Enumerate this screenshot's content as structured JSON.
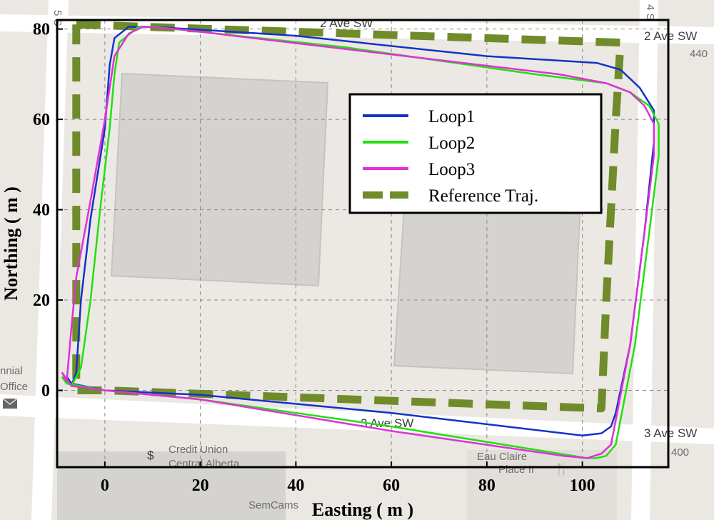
{
  "map_labels": {
    "street_top": "2 Ave SW",
    "street_top_right": "2 Ave SW",
    "street_bottom": "3 Ave SW",
    "street_bottom_right": "3 Ave SW",
    "number_440": "440",
    "number_400": "400",
    "left_fragment_1": "nnial",
    "left_fragment_2": "Office",
    "credit_union_1": "Credit Union",
    "credit_union_2": "Central Alberta",
    "eau_claire_1": "Eau Claire",
    "eau_claire_2": "Place II",
    "semcams": "SemCams",
    "left_street_edge": "5 S",
    "right_street_edge": "4 S"
  },
  "chart_data": {
    "type": "line",
    "title": "",
    "xlabel": "Easting ( m )",
    "ylabel": "Northing ( m )",
    "xlim": [
      -10,
      118
    ],
    "ylim": [
      -17,
      82
    ],
    "xticks": [
      0,
      20,
      40,
      60,
      80,
      100
    ],
    "yticks": [
      0,
      20,
      40,
      60,
      80
    ],
    "grid": true,
    "legend_position": "top-right",
    "series": [
      {
        "name": "Loop1",
        "color": "#1432c8",
        "style": "solid",
        "points": [
          [
            -8,
            3
          ],
          [
            -7,
            1
          ],
          [
            -6,
            4
          ],
          [
            -5,
            20
          ],
          [
            -3,
            38
          ],
          [
            0,
            58
          ],
          [
            1,
            72
          ],
          [
            2,
            78
          ],
          [
            5,
            80.5
          ],
          [
            10,
            80.5
          ],
          [
            40,
            78.5
          ],
          [
            80,
            74
          ],
          [
            103,
            72.5
          ],
          [
            108,
            71
          ],
          [
            112,
            67
          ],
          [
            115,
            62
          ],
          [
            115,
            55
          ],
          [
            113,
            35
          ],
          [
            110,
            10
          ],
          [
            107,
            -5
          ],
          [
            106,
            -8
          ],
          [
            104,
            -9.5
          ],
          [
            100,
            -10
          ],
          [
            60,
            -5
          ],
          [
            20,
            -1
          ],
          [
            0,
            0
          ],
          [
            -7,
            1.5
          ],
          [
            -8,
            3
          ]
        ]
      },
      {
        "name": "Loop2",
        "color": "#22e010",
        "style": "solid",
        "points": [
          [
            -9,
            3
          ],
          [
            -7,
            1
          ],
          [
            -5,
            5
          ],
          [
            -3,
            20
          ],
          [
            -1,
            40
          ],
          [
            1,
            58
          ],
          [
            2,
            70
          ],
          [
            3,
            77
          ],
          [
            7,
            80.5
          ],
          [
            10,
            80.5
          ],
          [
            50,
            76
          ],
          [
            90,
            70
          ],
          [
            105,
            68
          ],
          [
            110,
            66
          ],
          [
            114,
            63
          ],
          [
            116,
            59
          ],
          [
            116,
            52
          ],
          [
            114,
            35
          ],
          [
            111,
            10
          ],
          [
            107,
            -12
          ],
          [
            105,
            -14.5
          ],
          [
            103,
            -15
          ],
          [
            101,
            -15
          ],
          [
            60,
            -8
          ],
          [
            20,
            -2
          ],
          [
            0,
            0
          ],
          [
            -8,
            1.5
          ],
          [
            -9,
            3
          ]
        ]
      },
      {
        "name": "Loop3",
        "color": "#e030d8",
        "style": "solid",
        "points": [
          [
            -9,
            4
          ],
          [
            -8,
            2
          ],
          [
            -7,
            14
          ],
          [
            -6,
            25
          ],
          [
            -3,
            42
          ],
          [
            0,
            60
          ],
          [
            2,
            74
          ],
          [
            5,
            79
          ],
          [
            8,
            80.5
          ],
          [
            15,
            80
          ],
          [
            55,
            75
          ],
          [
            95,
            70
          ],
          [
            105,
            68
          ],
          [
            110,
            66
          ],
          [
            113,
            63
          ],
          [
            115,
            59
          ],
          [
            115,
            52
          ],
          [
            113,
            35
          ],
          [
            110,
            10
          ],
          [
            106,
            -12
          ],
          [
            104,
            -14
          ],
          [
            101,
            -15
          ],
          [
            96,
            -14.5
          ],
          [
            60,
            -9
          ],
          [
            20,
            -2
          ],
          [
            0,
            0
          ],
          [
            -7,
            1
          ],
          [
            -9,
            4
          ]
        ]
      },
      {
        "name": "Reference Traj.",
        "color": "#6f8b2a",
        "style": "dashed",
        "points": [
          [
            -6,
            81
          ],
          [
            108,
            77
          ],
          [
            107,
            60
          ],
          [
            105,
            20
          ],
          [
            104,
            -4
          ],
          [
            0,
            0
          ],
          [
            -6,
            0
          ],
          [
            -6,
            20
          ],
          [
            -6,
            40
          ],
          [
            -6,
            81
          ]
        ]
      }
    ]
  }
}
